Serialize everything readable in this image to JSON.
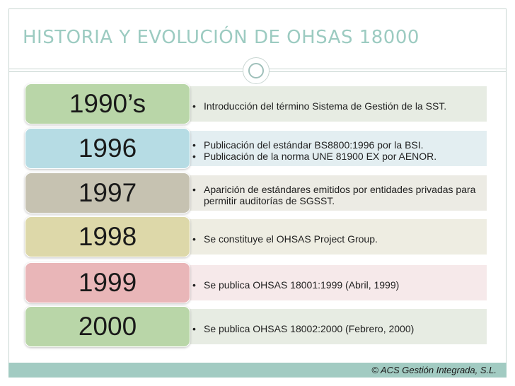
{
  "slide": {
    "title": "HISTORIA Y EVOLUCIÓN DE OHSAS 18000",
    "footer": "© ACS Gestión Integrada, S.L."
  },
  "timeline": [
    {
      "year": "1990’s",
      "color": "#b9d6a8",
      "desc_bg": "#e7ece3",
      "items": [
        "Introducción del término Sistema de Gestión de la SST."
      ]
    },
    {
      "year": "1996",
      "color": "#b6dce4",
      "desc_bg": "#e3eef1",
      "items": [
        "Publicación del estándar BS8800:1996 por la BSI.",
        "Publicación de la norma UNE 81900 EX por AENOR."
      ]
    },
    {
      "year": "1997",
      "color": "#c6c2b1",
      "desc_bg": "#ecebe4",
      "items": [
        "Aparición de estándares emitidos por entidades privadas para permitir auditorías de SGSST."
      ]
    },
    {
      "year": "1998",
      "color": "#ddd8a9",
      "desc_bg": "#eeede2",
      "items": [
        "Se constituye el OHSAS Project Group."
      ]
    },
    {
      "year": "1999",
      "color": "#e9b6b8",
      "desc_bg": "#f6e9ea",
      "items": [
        "Se publica OHSAS 18001:1999 (Abril, 1999)"
      ]
    },
    {
      "year": "2000",
      "color": "#b9d6a8",
      "desc_bg": "#e7ece3",
      "items": [
        "Se publica OHSAS 18002:2000 (Febrero, 2000)"
      ]
    }
  ]
}
